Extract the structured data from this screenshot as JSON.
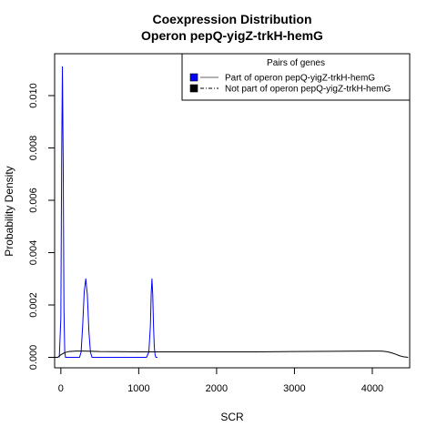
{
  "chart_data": {
    "type": "line",
    "title": "Coexpression Distribution",
    "subtitle": "Operon pepQ-yigZ-trkH-hemG",
    "xlabel": "SCR",
    "ylabel": "Probability Density",
    "xlim": [
      -80,
      4480
    ],
    "ylim": [
      -0.0004,
      0.0116
    ],
    "x_ticks": [
      0,
      1000,
      2000,
      3000,
      4000
    ],
    "x_tick_labels": [
      "0",
      "1000",
      "2000",
      "3000",
      "4000"
    ],
    "y_ticks": [
      0.0,
      0.002,
      0.004,
      0.006,
      0.008,
      0.01
    ],
    "y_tick_labels": [
      "0.000",
      "0.002",
      "0.004",
      "0.006",
      "0.008",
      "0.010"
    ],
    "grid": false,
    "legend": {
      "title": "Pairs of genes",
      "placement": "top-right",
      "entries": [
        {
          "label": "Part of operon pepQ-yigZ-trkH-hemG",
          "color": "#0000ff",
          "line": "solid"
        },
        {
          "label": "Not part of operon pepQ-yigZ-trkH-hemG",
          "color": "#000000",
          "line": "dashdot"
        }
      ]
    },
    "series": [
      {
        "color": "#0000ff",
        "x": [
          -20,
          0,
          10,
          20,
          30,
          40,
          50,
          60,
          80,
          100,
          150,
          200,
          240,
          260,
          280,
          300,
          320,
          340,
          360,
          380,
          400,
          420,
          500,
          700,
          900,
          1100,
          1130,
          1150,
          1160,
          1170,
          1180,
          1190,
          1200,
          1210,
          1220,
          1240
        ],
        "y": [
          0.0,
          0.0015,
          0.0075,
          0.0111,
          0.0075,
          0.0018,
          0.0002,
          0.0,
          0.0,
          0.0,
          0.0,
          0.0,
          0.0,
          0.0002,
          0.0012,
          0.0025,
          0.003,
          0.0024,
          0.001,
          0.0002,
          0.0,
          0.0,
          0.0,
          0.0,
          0.0,
          0.0,
          0.0002,
          0.0012,
          0.0024,
          0.003,
          0.0024,
          0.0012,
          0.0004,
          0.0001,
          0.0,
          0.0
        ]
      },
      {
        "color": "#000000",
        "x": [
          -100,
          -40,
          0,
          50,
          100,
          200,
          300,
          400,
          500,
          1000,
          1500,
          2000,
          2500,
          3000,
          3500,
          4000,
          4100,
          4150,
          4200,
          4250,
          4300,
          4350,
          4400,
          4460
        ],
        "y": [
          0.0,
          0.0,
          0.0001,
          0.00018,
          0.00022,
          0.00024,
          0.00024,
          0.00023,
          0.00022,
          0.00021,
          0.00021,
          0.00021,
          0.00021,
          0.00022,
          0.00023,
          0.00024,
          0.00024,
          0.00023,
          0.00021,
          0.00017,
          0.00012,
          6e-05,
          2e-05,
          0.0
        ]
      }
    ]
  }
}
